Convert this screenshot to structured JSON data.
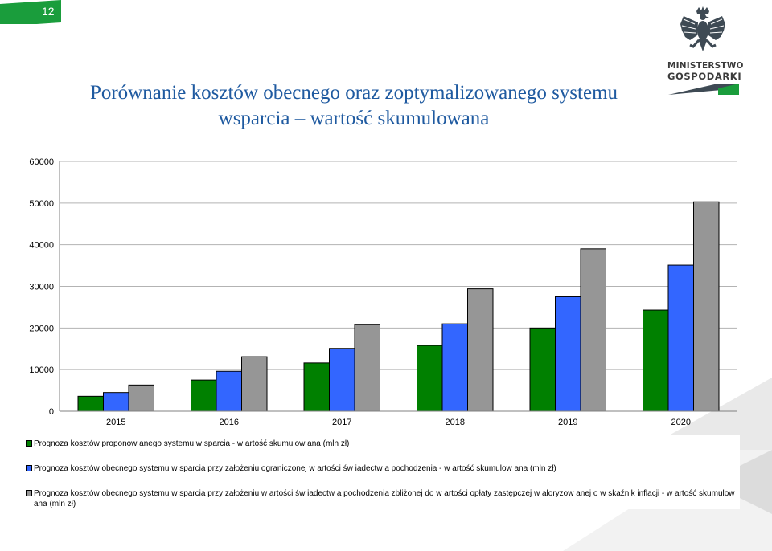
{
  "page_number": "12",
  "title": {
    "line1": "Porównanie kosztów obecnego oraz zoptymalizowanego systemu",
    "line2": "wsparcia – wartość skumulowana"
  },
  "logo": {
    "line1": "MINISTERSTWO",
    "line2": "GOSPODARKI",
    "emblem_icon": "white-eagle-emblem-icon"
  },
  "colors": {
    "page_badge": "#1a9d3c",
    "series_green": "#008000",
    "series_blue": "#3366ff",
    "series_gray": "#969696",
    "title": "#1f5aa0",
    "logo_bar_dark": "#3e4a54",
    "logo_bar_green": "#1a9d3c"
  },
  "chart_data": {
    "type": "bar",
    "categories": [
      "2015",
      "2016",
      "2017",
      "2018",
      "2019",
      "2020"
    ],
    "ylim": [
      0,
      60000
    ],
    "yticks": [
      "0",
      "10000",
      "20000",
      "30000",
      "40000",
      "50000",
      "60000"
    ],
    "grid": true,
    "legend_position": "bottom",
    "series": [
      {
        "name": "Prognoza kosztów  proponow anego systemu w sparcia - w artość skumulow ana (mln zł)",
        "color": "#008000",
        "values": [
          3600,
          7500,
          11600,
          15800,
          20000,
          24300
        ]
      },
      {
        "name": "Prognoza kosztów  obecnego systemu w sparcia przy założeniu ograniczonej w artości św iadectw a pochodzenia - w artość skumulow ana (mln zł)",
        "color": "#3366ff",
        "values": [
          4500,
          9600,
          15100,
          21000,
          27500,
          35100
        ]
      },
      {
        "name": "Prognoza kosztów  obecnego systemu w sparcia przy założeniu w artości św iadectw a pochodzenia zbliżonej do w artości opłaty zastępczej w aloryzow anej o w skaźnik inflacji - w artość skumulow ana (mln zł)",
        "color": "#969696",
        "values": [
          6300,
          13100,
          20800,
          29400,
          39000,
          50300
        ]
      }
    ]
  }
}
